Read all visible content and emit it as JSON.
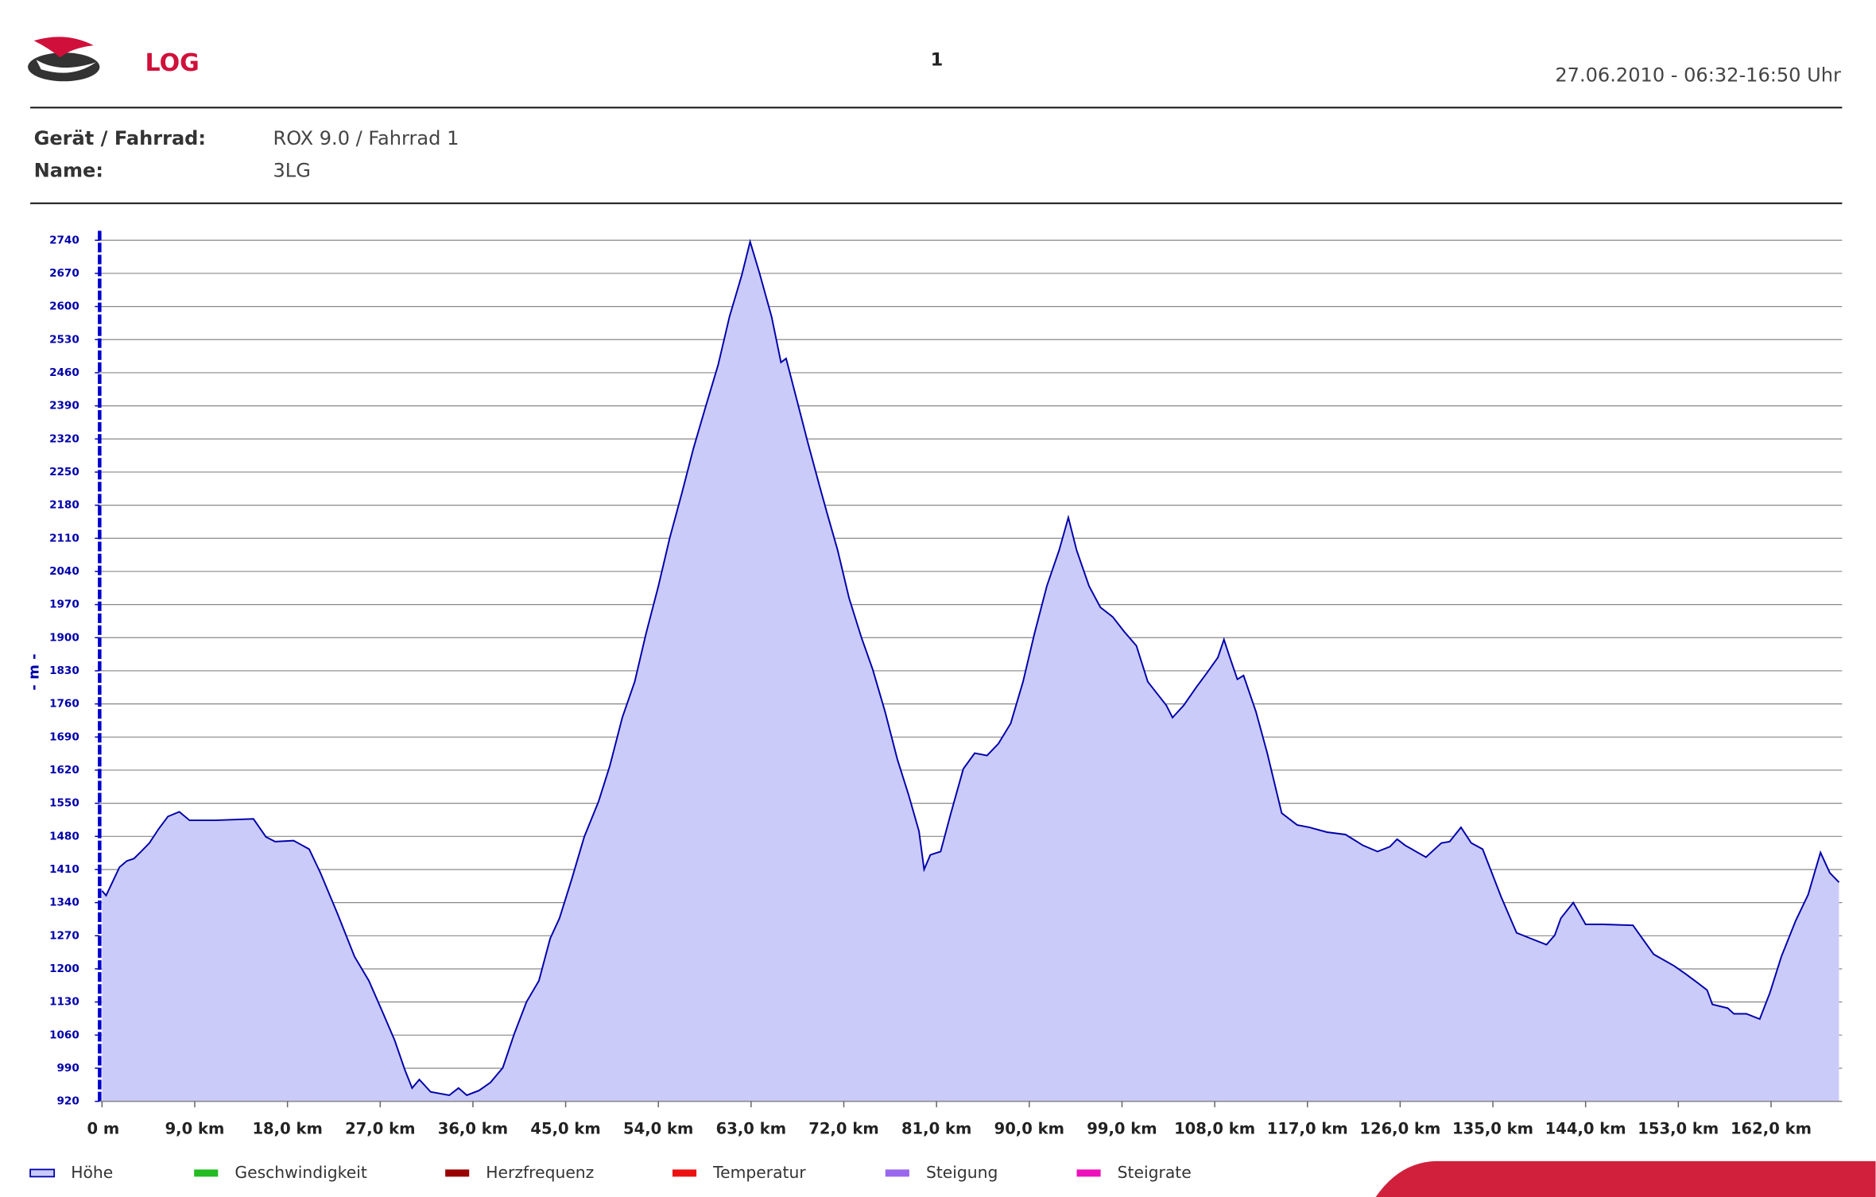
{
  "header": {
    "logo_text": "LOG",
    "page_number": "1",
    "date_range": "27.06.2010 - 06:32-16:50 Uhr"
  },
  "info": [
    {
      "label": "Gerät / Fahrrad:",
      "value": "ROX 9.0 / Fahrrad 1"
    },
    {
      "label": "Name:",
      "value": "3LG"
    }
  ],
  "chart_data": {
    "type": "area",
    "y_label": "- m -",
    "x": [
      0,
      0.4,
      1.7,
      2.4,
      3.1,
      3.8,
      4.6,
      5.5,
      6.4,
      7.5,
      8.5,
      9.9,
      11.0,
      14.7,
      15.9,
      16.8,
      18.6,
      20.1,
      21.2,
      22.9,
      24.5,
      25.9,
      27.3,
      28.4,
      29.4,
      30.1,
      30.8,
      31.9,
      33.7,
      34.6,
      35.4,
      36.6,
      37.7,
      38.9,
      40.0,
      41.2,
      42.4,
      43.5,
      44.4,
      45.6,
      46.8,
      48.2,
      49.3,
      50.5,
      51.7,
      52.8,
      54.0,
      55.1,
      56.3,
      57.4,
      58.6,
      59.8,
      60.9,
      62.1,
      62.9,
      63.8,
      65.0,
      65.9,
      66.4,
      67.3,
      68.5,
      69.6,
      70.4,
      71.4,
      72.5,
      73.7,
      74.8,
      76.0,
      77.2,
      78.3,
      79.3,
      79.8,
      80.4,
      81.4,
      82.4,
      83.6,
      84.7,
      85.9,
      87.0,
      88.2,
      89.4,
      90.5,
      91.7,
      92.9,
      93.8,
      94.6,
      95.8,
      96.9,
      98.1,
      99.2,
      100.4,
      101.5,
      103.3,
      103.9,
      105.0,
      106.2,
      107.3,
      108.3,
      108.9,
      109.4,
      110.2,
      110.8,
      112.0,
      113.1,
      114.5,
      116.0,
      117.2,
      118.9,
      120.7,
      122.4,
      123.8,
      125.0,
      125.7,
      126.5,
      128.5,
      130.0,
      130.8,
      131.9,
      132.9,
      134.0,
      135.8,
      137.3,
      138.7,
      140.2,
      141.0,
      141.6,
      142.8,
      144.0,
      145.7,
      148.6,
      150.6,
      152.6,
      153.8,
      154.9,
      155.8,
      156.3,
      157.8,
      158.4,
      159.6,
      160.9,
      161.9,
      163.0,
      164.4,
      165.6,
      166.8,
      167.7,
      168.6
    ],
    "series": [
      {
        "name": "Höhe",
        "color": "#0000aa",
        "fill": "#cbcbfa",
        "values": [
          1365,
          1355,
          1415,
          1428,
          1433,
          1448,
          1466,
          1496,
          1522,
          1532,
          1514,
          1514,
          1514,
          1517,
          1479,
          1469,
          1471,
          1453,
          1403,
          1314,
          1226,
          1175,
          1105,
          1049,
          986,
          948,
          966,
          940,
          933,
          948,
          933,
          943,
          960,
          991,
          1062,
          1130,
          1175,
          1264,
          1307,
          1390,
          1479,
          1554,
          1630,
          1731,
          1807,
          1908,
          2009,
          2111,
          2207,
          2300,
          2389,
          2477,
          2578,
          2667,
          2737,
          2672,
          2578,
          2482,
          2490,
          2414,
          2313,
          2224,
          2161,
          2085,
          1984,
          1901,
          1833,
          1744,
          1643,
          1567,
          1491,
          1410,
          1441,
          1448,
          1529,
          1623,
          1656,
          1651,
          1676,
          1719,
          1807,
          1908,
          2009,
          2085,
          2154,
          2085,
          2009,
          1964,
          1944,
          1913,
          1883,
          1807,
          1757,
          1731,
          1757,
          1795,
          1827,
          1858,
          1896,
          1863,
          1812,
          1820,
          1744,
          1656,
          1529,
          1504,
          1499,
          1489,
          1484,
          1461,
          1448,
          1458,
          1474,
          1461,
          1436,
          1466,
          1469,
          1499,
          1466,
          1453,
          1352,
          1276,
          1264,
          1251,
          1271,
          1307,
          1340,
          1294,
          1294,
          1292,
          1231,
          1206,
          1188,
          1170,
          1155,
          1125,
          1117,
          1105,
          1105,
          1094,
          1150,
          1226,
          1302,
          1357,
          1446,
          1403,
          1383
        ]
      }
    ],
    "other_legend_entries": [
      {
        "name": "Geschwindigkeit",
        "color": "#22bb22"
      },
      {
        "name": "Herzfrequenz",
        "color": "#990000"
      },
      {
        "name": "Temperatur",
        "color": "#ee1111"
      },
      {
        "name": "Steigung",
        "color": "#9966ee"
      },
      {
        "name": "Steigrate",
        "color": "#ee11bb"
      }
    ],
    "xlim": [
      0,
      168.9
    ],
    "ylim": [
      920,
      2760
    ],
    "xticks": [
      {
        "value": 0,
        "label": "0 m"
      },
      {
        "value": 9,
        "label": "9,0 km"
      },
      {
        "value": 18,
        "label": "18,0 km"
      },
      {
        "value": 27,
        "label": "27,0 km"
      },
      {
        "value": 36,
        "label": "36,0 km"
      },
      {
        "value": 45,
        "label": "45,0 km"
      },
      {
        "value": 54,
        "label": "54,0 km"
      },
      {
        "value": 63,
        "label": "63,0 km"
      },
      {
        "value": 72,
        "label": "72,0 km"
      },
      {
        "value": 81,
        "label": "81,0 km"
      },
      {
        "value": 90,
        "label": "90,0 km"
      },
      {
        "value": 99,
        "label": "99,0 km"
      },
      {
        "value": 108,
        "label": "108,0 km"
      },
      {
        "value": 117,
        "label": "117,0 km"
      },
      {
        "value": 126,
        "label": "126,0 km"
      },
      {
        "value": 135,
        "label": "135,0 km"
      },
      {
        "value": 144,
        "label": "144,0 km"
      },
      {
        "value": 153,
        "label": "153,0 km"
      },
      {
        "value": 162,
        "label": "162,0 km"
      }
    ],
    "yticks": [
      920,
      990,
      1060,
      1130,
      1200,
      1270,
      1340,
      1410,
      1480,
      1550,
      1620,
      1690,
      1760,
      1830,
      1900,
      1970,
      2040,
      2110,
      2180,
      2250,
      2320,
      2390,
      2460,
      2530,
      2600,
      2670,
      2740
    ],
    "grid": true
  }
}
